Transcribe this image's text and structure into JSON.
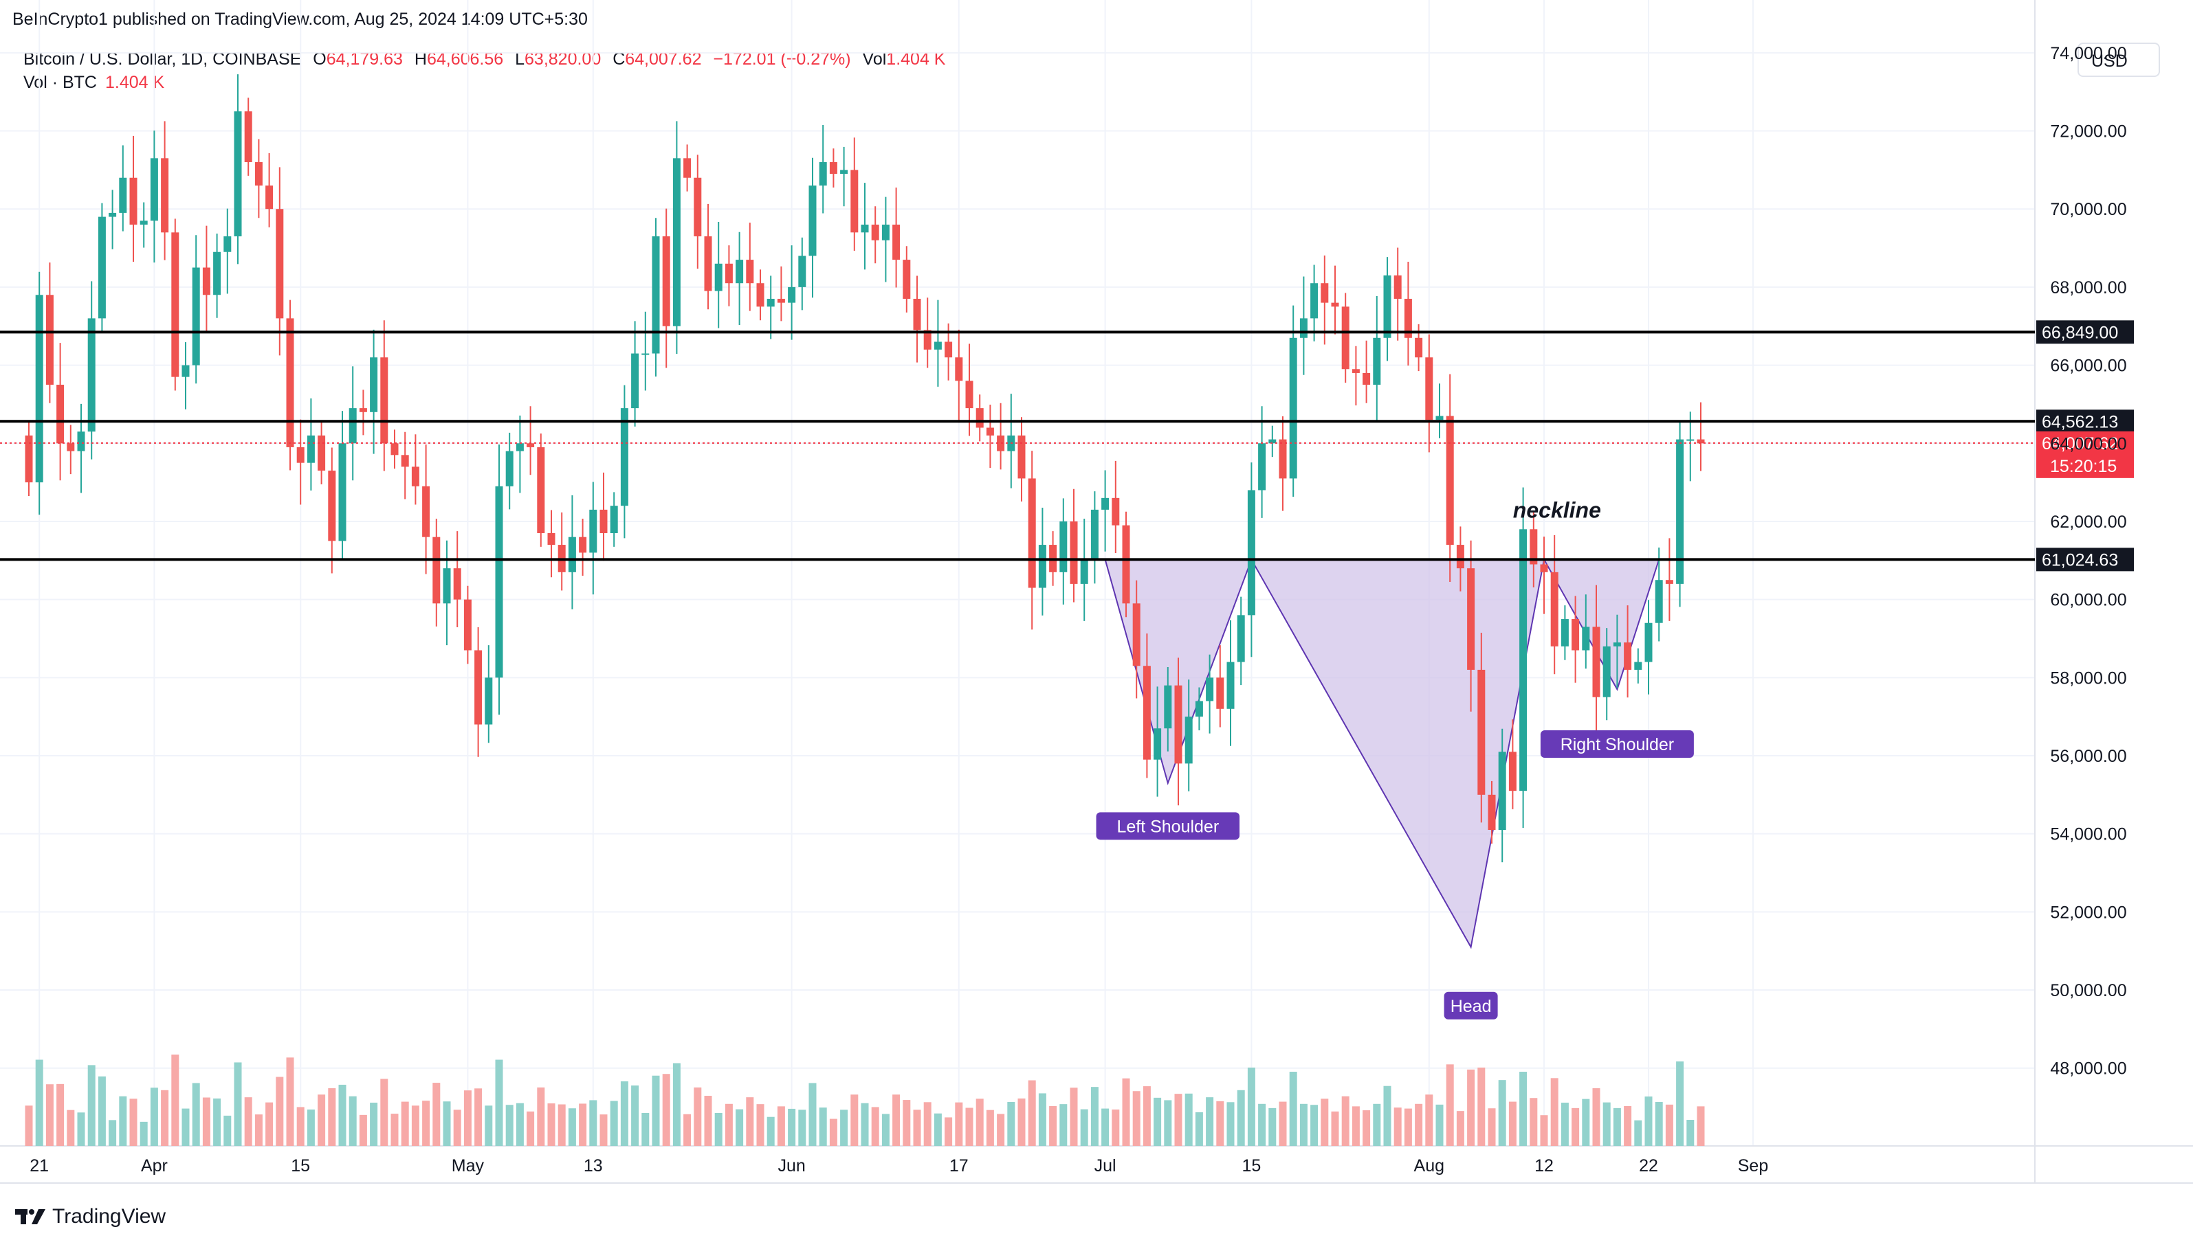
{
  "header": {
    "published": "BeInCrypto1 published on TradingView.com, Aug 25, 2024 14:09 UTC+5:30",
    "symbol": "Bitcoin / U.S. Dollar, 1D, COINBASE",
    "o_label": "O",
    "o_value": "64,179.63",
    "h_label": "H",
    "h_value": "64,606.56",
    "l_label": "L",
    "l_value": "63,820.00",
    "c_label": "C",
    "c_value": "64,007.62",
    "change": "−172.01 (−0.27%)",
    "vol_label": "Vol",
    "vol_value": "1.404 K",
    "vol_series_label": "Vol · BTC",
    "vol_series_value": "1.404 K",
    "currency": "USD"
  },
  "brand": {
    "name": "TradingView"
  },
  "colors": {
    "up": "#26a69a",
    "down": "#ef5350",
    "up_vol": "#92d2cc",
    "down_vol": "#f7a9a7",
    "pattern_fill": "#d1c4e9",
    "pattern_stroke": "#5e35b1",
    "label_bg": "#673ab7",
    "last_price_bg": "#f23645",
    "line": "#000000"
  },
  "chart_data": {
    "type": "candlestick",
    "instrument": "Bitcoin / U.S. Dollar",
    "interval": "1D",
    "exchange": "COINBASE",
    "ylim": [
      46500,
      75000
    ],
    "y_ticks": [
      "74,000.00",
      "72,000.00",
      "70,000.00",
      "68,000.00",
      "66,000.00",
      "64,000.00",
      "62,000.00",
      "60,000.00",
      "58,000.00",
      "56,000.00",
      "54,000.00",
      "52,000.00",
      "50,000.00",
      "48,000.00"
    ],
    "y_tick_values": [
      74000,
      72000,
      70000,
      68000,
      66000,
      64000,
      62000,
      60000,
      58000,
      56000,
      54000,
      52000,
      50000,
      48000
    ],
    "x_ticks": [
      {
        "label": "21",
        "date": "2024-03-21"
      },
      {
        "label": "Apr",
        "date": "2024-04-01"
      },
      {
        "label": "15",
        "date": "2024-04-15"
      },
      {
        "label": "May",
        "date": "2024-05-01"
      },
      {
        "label": "13",
        "date": "2024-05-13"
      },
      {
        "label": "Jun",
        "date": "2024-06-01"
      },
      {
        "label": "17",
        "date": "2024-06-17"
      },
      {
        "label": "Jul",
        "date": "2024-07-01"
      },
      {
        "label": "15",
        "date": "2024-07-15"
      },
      {
        "label": "Aug",
        "date": "2024-08-01"
      },
      {
        "label": "12",
        "date": "2024-08-12"
      },
      {
        "label": "22",
        "date": "2024-08-22"
      },
      {
        "label": "Sep",
        "date": "2024-09-01"
      }
    ],
    "start_date": "2024-03-20",
    "closes": [
      63000,
      67800,
      65500,
      64000,
      63800,
      64300,
      67200,
      69800,
      69900,
      70800,
      69600,
      69700,
      71300,
      69400,
      65700,
      66000,
      68500,
      67800,
      68900,
      69300,
      72500,
      71200,
      70600,
      70000,
      67200,
      63900,
      63500,
      64200,
      63300,
      61500,
      64000,
      64900,
      64800,
      66200,
      64000,
      63700,
      63400,
      62900,
      61600,
      59900,
      60800,
      60000,
      58700,
      56800,
      58000,
      62900,
      63800,
      64000,
      63900,
      61700,
      61400,
      60700,
      61600,
      61200,
      62300,
      61700,
      62400,
      64900,
      66300,
      66300,
      69300,
      67000,
      71300,
      70800,
      69300,
      67900,
      68600,
      68100,
      68700,
      68100,
      67500,
      67700,
      67600,
      68000,
      68800,
      70600,
      71200,
      70900,
      71000,
      69400,
      69600,
      69200,
      69600,
      68700,
      67700,
      66900,
      66400,
      66600,
      66200,
      65600,
      64900,
      64400,
      64200,
      63800,
      64200,
      63100,
      60300,
      61400,
      60700,
      62000,
      60400,
      61000,
      62300,
      62600,
      61900,
      59900,
      58300,
      55900,
      56700,
      57800,
      55800,
      57000,
      57400,
      58000,
      57200,
      58400,
      59600,
      62800,
      64000,
      64100,
      63100,
      66700,
      67200,
      68100,
      67600,
      67500,
      65900,
      65800,
      65500,
      66700,
      68300,
      67700,
      66700,
      66200,
      64600,
      64700,
      61400,
      60800,
      58200,
      55000,
      54100,
      56100,
      55100,
      61800,
      60900,
      60700,
      58800,
      59500,
      58700,
      59300,
      57500,
      58800,
      58900,
      58200,
      58400,
      59400,
      60500,
      60400,
      64100,
      64100,
      64000
    ],
    "volume_max_label": "Vol · BTC 1.404 K",
    "horizontal_levels": [
      {
        "value": 66849.0,
        "label": "66,849.00"
      },
      {
        "value": 64562.13,
        "label": "64,562.13"
      },
      {
        "value": 61024.63,
        "label": "61,024.63"
      }
    ],
    "last_price": {
      "value": 64007.62,
      "label": "64,007.62",
      "countdown": "15:20:15"
    },
    "annotations": [
      {
        "text": "neckline",
        "date": "2024-08-11",
        "y": 62100
      },
      {
        "text": "Left Shoulder",
        "date": "2024-07-07",
        "y": 54200
      },
      {
        "text": "Head",
        "date": "2024-08-05",
        "y": 49600
      },
      {
        "text": "Right Shoulder",
        "date": "2024-08-19",
        "y": 56300
      }
    ],
    "pattern": {
      "name": "Inverse head and shoulders",
      "points": [
        {
          "date": "2024-07-01",
          "y": 61024
        },
        {
          "date": "2024-07-07",
          "y": 55300
        },
        {
          "date": "2024-07-15",
          "y": 61024
        },
        {
          "date": "2024-08-05",
          "y": 51100
        },
        {
          "date": "2024-08-12",
          "y": 61024
        },
        {
          "date": "2024-08-19",
          "y": 57700
        },
        {
          "date": "2024-08-23",
          "y": 61024
        }
      ]
    }
  }
}
